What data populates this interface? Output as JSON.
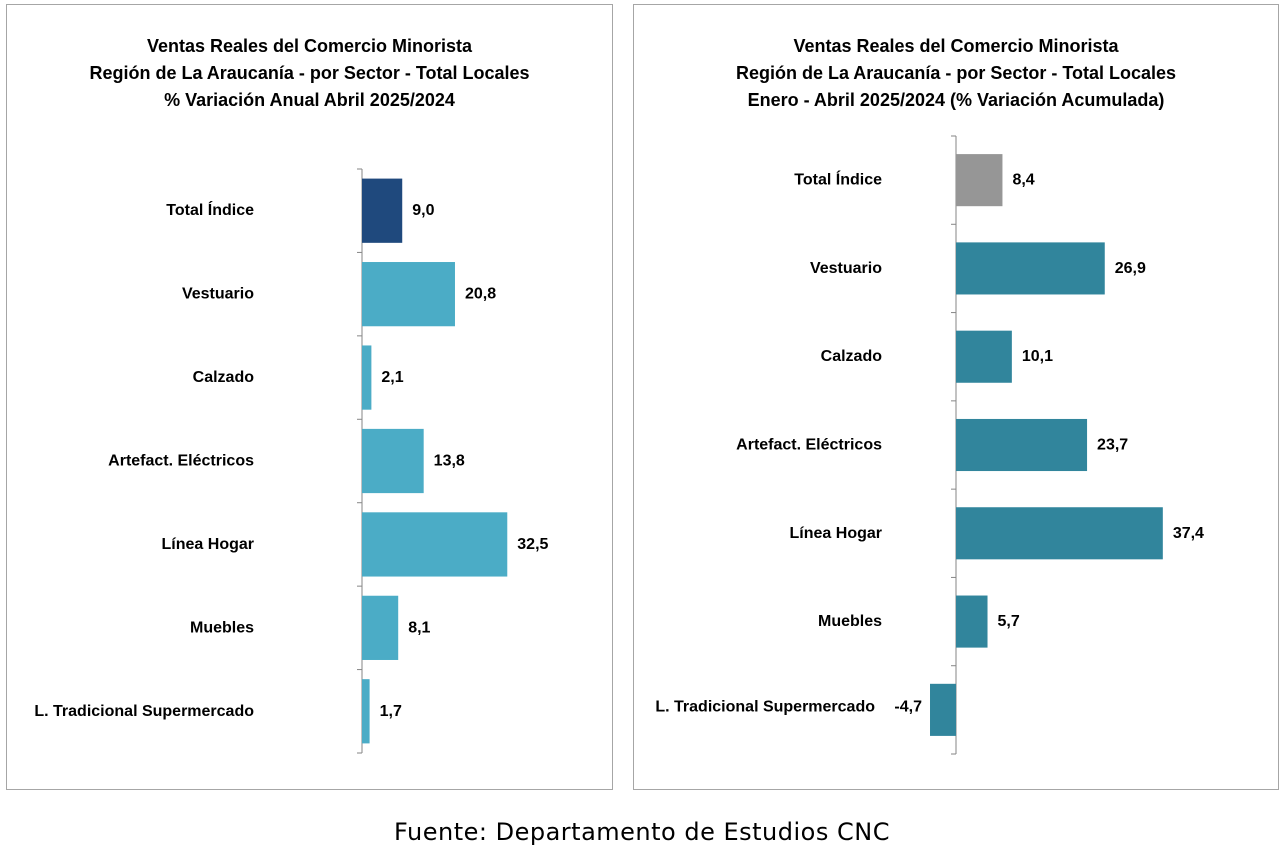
{
  "chart_data": [
    {
      "type": "bar",
      "orientation": "horizontal",
      "title": [
        "Ventas Reales del Comercio Minorista",
        "Región de La Araucanía - por Sector - Total Locales",
        "% Variación Anual Abril 2025/2024"
      ],
      "categories": [
        "Total Índice",
        "Vestuario",
        "Calzado",
        "Artefact. Eléctricos",
        "Línea Hogar",
        "Muebles",
        "L. Tradicional Supermercado"
      ],
      "values": [
        9.0,
        20.8,
        2.1,
        13.8,
        32.5,
        8.1,
        1.7
      ],
      "value_labels": [
        "9,0",
        "20,8",
        "2,1",
        "13,8",
        "32,5",
        "8,1",
        "1,7"
      ],
      "colors": [
        "#1f497d",
        "#4bacc6",
        "#4bacc6",
        "#4bacc6",
        "#4bacc6",
        "#4bacc6",
        "#4bacc6"
      ],
      "xlim": [
        0,
        40
      ],
      "grid": false,
      "legend": "none"
    },
    {
      "type": "bar",
      "orientation": "horizontal",
      "title": [
        "Ventas Reales del Comercio Minorista",
        "Región de La Araucanía - por Sector - Total Locales",
        "Enero - Abril 2025/2024 (% Variación Acumulada)"
      ],
      "categories": [
        "Total Índice",
        "Vestuario",
        "Calzado",
        "Artefact. Eléctricos",
        "Línea Hogar",
        "Muebles",
        "L. Tradicional Supermercado"
      ],
      "values": [
        8.4,
        26.9,
        10.1,
        23.7,
        37.4,
        5.7,
        -4.7
      ],
      "value_labels": [
        "8,4",
        "26,9",
        "10,1",
        "23,7",
        "37,4",
        "5,7",
        "-4,7"
      ],
      "colors": [
        "#969696",
        "#31859c",
        "#31859c",
        "#31859c",
        "#31859c",
        "#31859c",
        "#31859c"
      ],
      "xlim": [
        -5,
        40
      ],
      "grid": false,
      "legend": "none"
    }
  ],
  "source": "Fuente:  Departamento  de Estudios  CNC"
}
